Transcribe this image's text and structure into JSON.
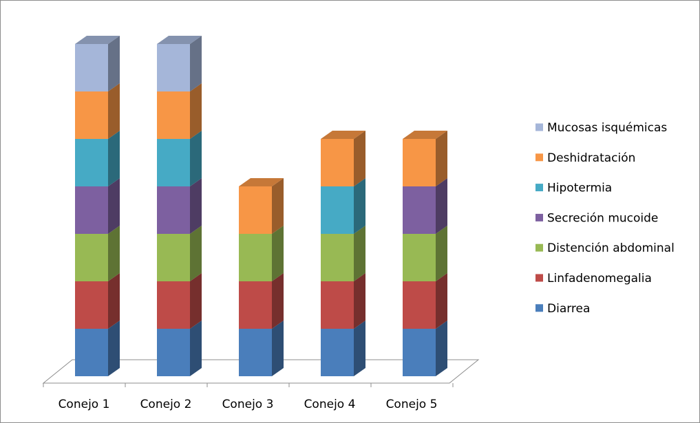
{
  "chart_data": {
    "type": "bar",
    "stacked": true,
    "three_d": true,
    "categories": [
      "Conejo  1",
      "Conejo 2",
      "Conejo 3",
      "Conejo 4",
      "Conejo 5"
    ],
    "series": [
      {
        "name": "Diarrea",
        "color": "#4a7ebb",
        "values": [
          1,
          1,
          1,
          1,
          1
        ]
      },
      {
        "name": "Linfadenomegalia",
        "color": "#be4b48",
        "values": [
          1,
          1,
          1,
          1,
          1
        ]
      },
      {
        "name": "Distención abdominal",
        "color": "#98b954",
        "values": [
          1,
          1,
          1,
          1,
          1
        ]
      },
      {
        "name": "Secreción mucoide",
        "color": "#7d60a0",
        "values": [
          1,
          1,
          0,
          0,
          1
        ]
      },
      {
        "name": "Hipotermia",
        "color": "#46aac5",
        "values": [
          1,
          1,
          0,
          1,
          0
        ]
      },
      {
        "name": "Deshidratación",
        "color": "#f79646",
        "values": [
          1,
          1,
          1,
          1,
          1
        ]
      },
      {
        "name": "Mucosas isquémicas",
        "color": "#a5b6d9",
        "values": [
          1,
          1,
          0,
          0,
          0
        ]
      }
    ],
    "legend_order": [
      "Mucosas isquémicas",
      "Deshidratación",
      "Hipotermia",
      "Secreción mucoide",
      "Distención abdominal",
      "Linfadenomegalia",
      "Diarrea"
    ],
    "legend_position": "right",
    "ylim": [
      0,
      7
    ],
    "grid": false,
    "title": "",
    "xlabel": "",
    "ylabel": ""
  }
}
